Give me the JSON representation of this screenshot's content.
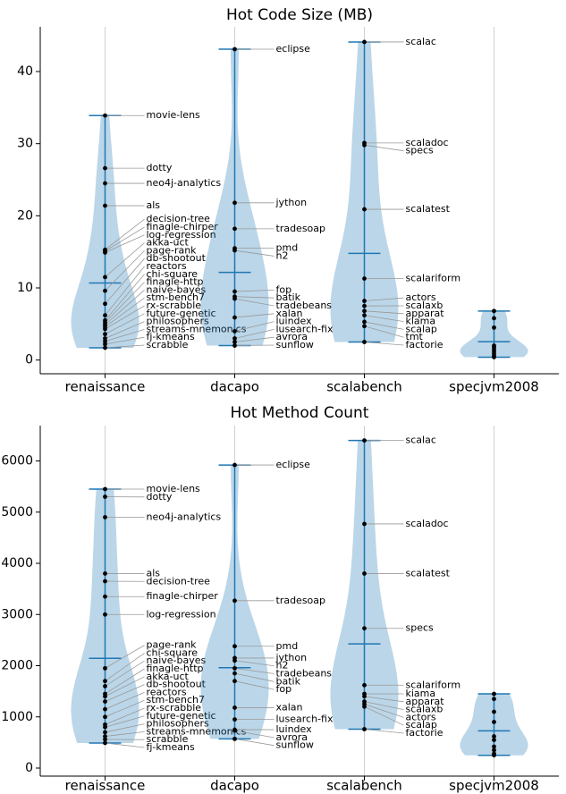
{
  "chart_data": [
    {
      "type": "violin",
      "title": "Hot Code Size (MB)",
      "categories": [
        "renaissance",
        "dacapo",
        "scalabench",
        "specjvm2008"
      ],
      "groups": [
        {
          "values": [
            33.9,
            26.6,
            24.5,
            21.4,
            15.3,
            15.1,
            14.9,
            11.5,
            9.6,
            7.8,
            6.2,
            5.5,
            5.2,
            4.9,
            4.6,
            4.3,
            3.6,
            3.0,
            2.6,
            2.2,
            1.7
          ],
          "labels": [
            "movie-lens",
            "dotty",
            "neo4j-analytics",
            "als",
            "decision-tree",
            "finagle-chirper",
            "log-regression",
            "akka-uct",
            "page-rank",
            "db-shootout",
            "reactors",
            "chi-square",
            "finagle-http",
            "naive-bayes",
            "stm-bench7",
            "rx-scrabble",
            "future-genetic",
            "philosophers",
            "streams-mnemonics",
            "fj-kmeans",
            "scrabble"
          ]
        },
        {
          "values": [
            43.1,
            21.8,
            18.2,
            15.5,
            15.2,
            9.5,
            8.8,
            8.5,
            5.9,
            4.0,
            3.0,
            2.5,
            2.0
          ],
          "labels": [
            "eclipse",
            "jython",
            "tradesoap",
            "pmd",
            "h2",
            "fop",
            "batik",
            "tradebeans",
            "xalan",
            "luindex",
            "lusearch-fix",
            "avrora",
            "sunflow"
          ]
        },
        {
          "values": [
            44.1,
            30.1,
            29.8,
            20.9,
            11.3,
            8.2,
            7.5,
            6.8,
            6.2,
            5.3,
            4.7,
            2.5
          ],
          "labels": [
            "scalac",
            "scaladoc",
            "specs",
            "scalatest",
            "scalariform",
            "actors",
            "scalaxb",
            "apparat",
            "klama",
            "scalap",
            "tmt",
            "factorie"
          ]
        },
        {
          "values": [
            6.8,
            5.8,
            4.5,
            2.0,
            1.8,
            1.5,
            1.2,
            0.9,
            0.6,
            0.4
          ]
        }
      ],
      "ylim": [
        -1.9,
        46.2
      ],
      "yticks": [
        0,
        10,
        20,
        30,
        40
      ],
      "grid": "x",
      "color": "#1f77b4"
    },
    {
      "type": "violin",
      "title": "Hot Method Count",
      "categories": [
        "renaissance",
        "dacapo",
        "scalabench",
        "specjvm2008"
      ],
      "groups": [
        {
          "values": [
            5450,
            5300,
            4900,
            3800,
            3650,
            3350,
            3000,
            1950,
            1700,
            1600,
            1450,
            1400,
            1300,
            1150,
            1000,
            850,
            800,
            700,
            620,
            560,
            490
          ],
          "labels": [
            "movie-lens",
            "dotty",
            "neo4j-analytics",
            "als",
            "decision-tree",
            "finagle-chirper",
            "log-regression",
            "page-rank",
            "chi-square",
            "naive-bayes",
            "finagle-http",
            "akka-uct",
            "db-shootout",
            "reactors",
            "stm-bench7",
            "rx-scrabble",
            "future-genetic",
            "philosophers",
            "streams-mnemonics",
            "scrabble",
            "fj-kmeans"
          ]
        },
        {
          "values": [
            5920,
            3270,
            2380,
            2150,
            2100,
            1950,
            1850,
            1700,
            1180,
            950,
            750,
            730,
            570
          ],
          "labels": [
            "eclipse",
            "tradesoap",
            "pmd",
            "jython",
            "h2",
            "tradebeans",
            "batik",
            "fop",
            "xalan",
            "lusearch-fix",
            "luindex",
            "avrora",
            "sunflow"
          ]
        },
        {
          "values": [
            6400,
            4770,
            3800,
            2730,
            1620,
            1450,
            1400,
            1300,
            1250,
            1200,
            760
          ],
          "labels": [
            "scalac",
            "scaladoc",
            "scalatest",
            "specs",
            "scalariform",
            "kiama",
            "apparat",
            "scalaxb",
            "actors",
            "scalap",
            "factorie"
          ]
        },
        {
          "values": [
            1450,
            1350,
            1100,
            900,
            620,
            550,
            420,
            350,
            280,
            250
          ]
        }
      ],
      "ylim": [
        -157,
        6690
      ],
      "yticks": [
        0,
        1000,
        2000,
        3000,
        4000,
        5000,
        6000
      ],
      "grid": "x",
      "color": "#1f77b4"
    }
  ]
}
